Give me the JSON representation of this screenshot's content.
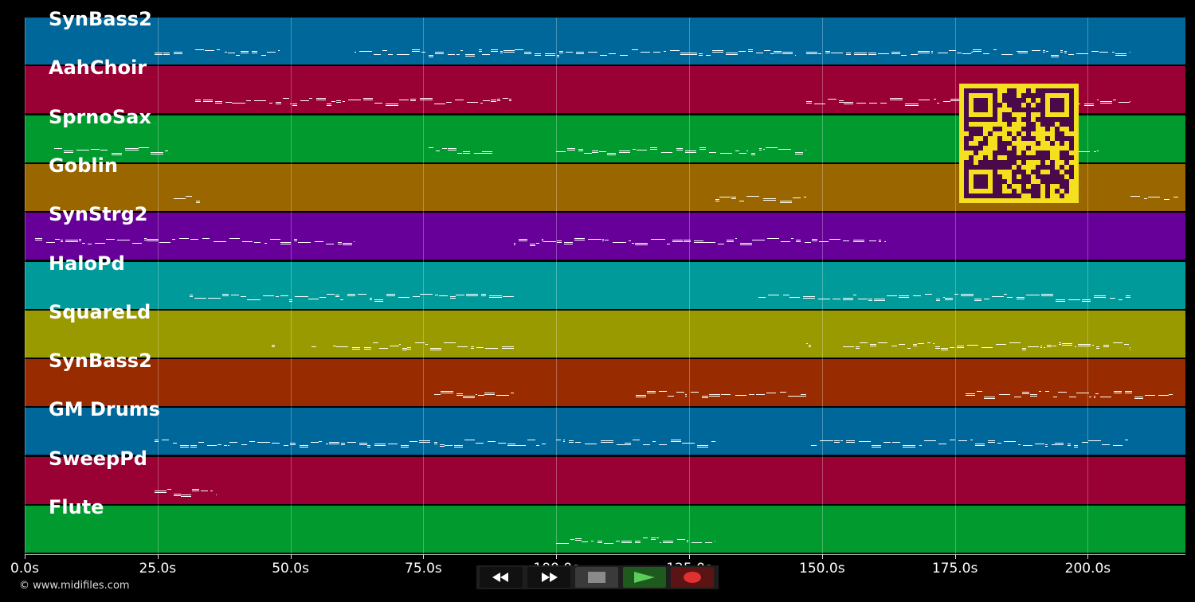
{
  "track_colors": [
    "#00679a",
    "#990033",
    "#009a2f",
    "#996600",
    "#660099",
    "#009a9a",
    "#999900",
    "#992b00",
    "#00679a",
    "#990033",
    "#009a2f"
  ],
  "tracks": [
    {
      "label": "SynBass2"
    },
    {
      "label": "AahChoir"
    },
    {
      "label": "SprnoSax"
    },
    {
      "label": "Goblin"
    },
    {
      "label": "SynStrg2"
    },
    {
      "label": "HaloPd"
    },
    {
      "label": "SquareLd"
    },
    {
      "label": "SynBass2"
    },
    {
      "label": "GM Drums"
    },
    {
      "label": "SweepPd"
    },
    {
      "label": "Flute"
    }
  ],
  "timeline": {
    "ticks": [
      "0.0s",
      "25.0s",
      "50.0s",
      "75.0s",
      "100.0s",
      "125.0s",
      "150.0s",
      "175.0s",
      "200.0s"
    ]
  },
  "copyright": "© www.midifiles.com",
  "transport": {
    "rewind_icon": "rewind-icon",
    "forward_icon": "fast-forward-icon",
    "stop_icon": "stop-icon",
    "play_icon": "play-icon",
    "record_icon": "record-icon",
    "play_color": "#5ccc5c",
    "record_color": "#e03030"
  },
  "qr_colors": {
    "fg": "#4a0a4a",
    "bg": "#f5e020"
  }
}
